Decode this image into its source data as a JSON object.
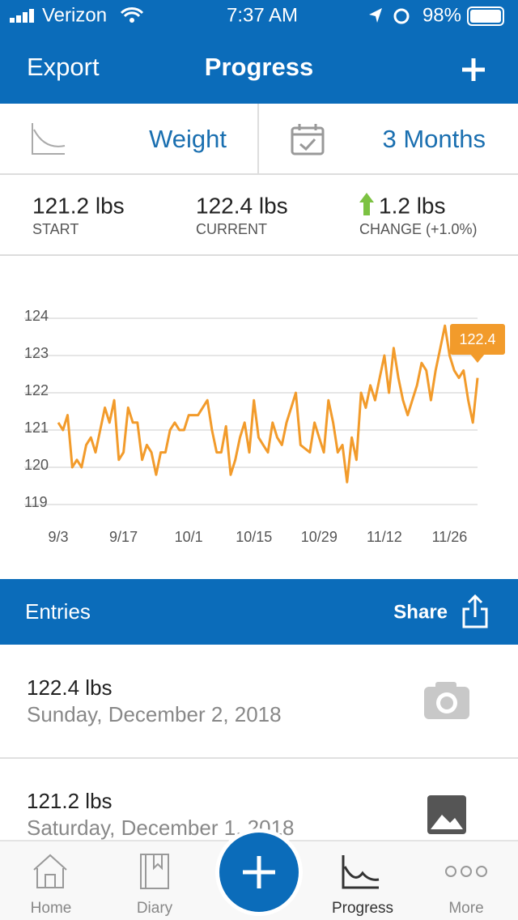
{
  "status_bar": {
    "carrier": "Verizon",
    "time": "7:37 AM",
    "battery": "98%"
  },
  "nav": {
    "left": "Export",
    "title": "Progress"
  },
  "selectors": {
    "metric": "Weight",
    "range": "3 Months"
  },
  "stats": [
    {
      "value": "121.2 lbs",
      "label": "START"
    },
    {
      "value": "122.4 lbs",
      "label": "CURRENT"
    },
    {
      "value": "1.2 lbs",
      "label": "CHANGE (+1.0%)"
    }
  ],
  "chart_data": {
    "type": "line",
    "x": [
      "9/3",
      "9/4",
      "9/5",
      "9/6",
      "9/7",
      "9/8",
      "9/9",
      "9/10",
      "9/11",
      "9/12",
      "9/13",
      "9/14",
      "9/15",
      "9/16",
      "9/17",
      "9/18",
      "9/19",
      "9/20",
      "9/21",
      "9/22",
      "9/23",
      "9/24",
      "9/25",
      "9/26",
      "9/27",
      "9/28",
      "9/29",
      "9/30",
      "10/1",
      "10/2",
      "10/3",
      "10/4",
      "10/5",
      "10/6",
      "10/7",
      "10/8",
      "10/9",
      "10/10",
      "10/11",
      "10/12",
      "10/13",
      "10/14",
      "10/15",
      "10/16",
      "10/17",
      "10/18",
      "10/19",
      "10/20",
      "10/21",
      "10/22",
      "10/23",
      "10/24",
      "10/25",
      "10/26",
      "10/27",
      "10/28",
      "10/29",
      "10/30",
      "10/31",
      "11/1",
      "11/2",
      "11/3",
      "11/4",
      "11/5",
      "11/6",
      "11/7",
      "11/8",
      "11/9",
      "11/10",
      "11/11",
      "11/12",
      "11/13",
      "11/14",
      "11/15",
      "11/16",
      "11/17",
      "11/18",
      "11/19",
      "11/20",
      "11/21",
      "11/22",
      "11/23",
      "11/24",
      "11/25",
      "11/26",
      "11/27",
      "11/28",
      "11/29",
      "11/30",
      "12/1",
      "12/2"
    ],
    "series": [
      {
        "color": "#f29b2b",
        "values": [
          121.2,
          121.0,
          121.4,
          120.0,
          120.2,
          120.0,
          120.6,
          120.8,
          120.4,
          121.0,
          121.6,
          121.2,
          121.8,
          120.2,
          120.4,
          121.6,
          121.2,
          121.2,
          120.2,
          120.6,
          120.4,
          119.8,
          120.4,
          120.4,
          121.0,
          121.2,
          121.0,
          121.0,
          121.4,
          121.4,
          121.4,
          121.6,
          121.8,
          121.0,
          120.4,
          120.4,
          121.1,
          119.8,
          120.2,
          120.8,
          121.2,
          120.4,
          121.8,
          120.8,
          120.6,
          120.4,
          121.2,
          120.8,
          120.6,
          121.2,
          121.6,
          122.0,
          120.6,
          120.5,
          120.4,
          121.2,
          120.8,
          120.4,
          121.8,
          121.2,
          120.4,
          120.6,
          119.6,
          120.8,
          120.2,
          122.0,
          121.6,
          122.2,
          121.8,
          122.4,
          123.0,
          122.0,
          123.2,
          122.4,
          121.8,
          121.4,
          121.8,
          122.2,
          122.8,
          122.6,
          121.8,
          122.6,
          123.2,
          123.8,
          123.0,
          122.6,
          122.4,
          122.6,
          121.8,
          121.2,
          122.4
        ]
      }
    ],
    "ylim": [
      119,
      124
    ],
    "yticks": [
      119,
      120,
      121,
      122,
      123,
      124
    ],
    "xticks": [
      "9/3",
      "9/17",
      "10/1",
      "10/15",
      "10/29",
      "11/12",
      "11/26"
    ],
    "grid": true
  },
  "entries_header": {
    "title": "Entries",
    "action": "Share"
  },
  "entries": [
    {
      "weight": "122.4 lbs",
      "date": "Sunday, December 2, 2018"
    },
    {
      "weight": "121.2 lbs",
      "date": "Saturday, December 1, 2018"
    }
  ],
  "tabs": [
    "Home",
    "Diary",
    "Progress",
    "More"
  ]
}
